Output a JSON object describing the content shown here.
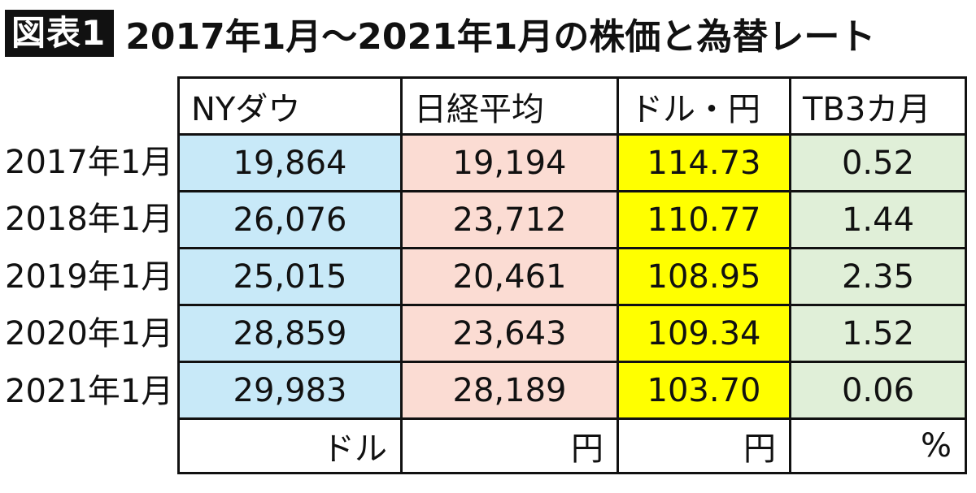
{
  "figure": {
    "badge": "図表1",
    "title": "2017年1月〜2021年1月の株価と為替レート"
  },
  "colors": {
    "ny_dow": "#c8e9f8",
    "nikkei": "#fbdcd3",
    "usd_jpy": "#ffff00",
    "tb3m": "#e0efd8"
  },
  "chart_data": {
    "type": "table",
    "title": "2017年1月〜2021年1月の株価と為替レート",
    "columns": [
      "NYダウ",
      "日経平均",
      "ドル・円",
      "TB3カ月"
    ],
    "rows": [
      {
        "label": "2017年1月",
        "values": [
          "19,864",
          "19,194",
          "114.73",
          "0.52"
        ]
      },
      {
        "label": "2018年1月",
        "values": [
          "26,076",
          "23,712",
          "110.77",
          "1.44"
        ]
      },
      {
        "label": "2019年1月",
        "values": [
          "25,015",
          "20,461",
          "108.95",
          "2.35"
        ]
      },
      {
        "label": "2020年1月",
        "values": [
          "28,859",
          "23,643",
          "109.34",
          "1.52"
        ]
      },
      {
        "label": "2021年1月",
        "values": [
          "29,983",
          "28,189",
          "103.70",
          "0.06"
        ]
      }
    ],
    "units": [
      "ドル",
      "円",
      "円",
      "%"
    ]
  }
}
